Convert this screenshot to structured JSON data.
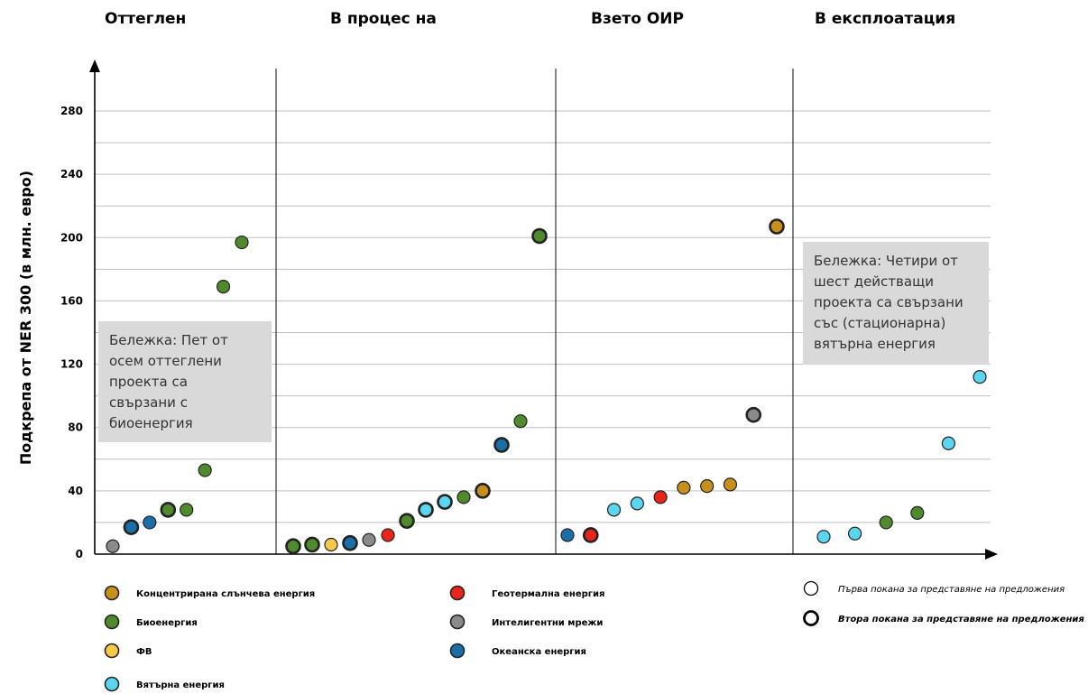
{
  "chart_data": {
    "type": "scatter",
    "ylabel": "Подкрепа от NER 300 (в млн. евро)",
    "ylim": [
      0,
      280
    ],
    "yticks": [
      0,
      40,
      80,
      120,
      160,
      200,
      240,
      280
    ],
    "grid": true,
    "panels": [
      {
        "title": "Оттеглен",
        "note": [
          "Бележка: Пет от",
          "осем оттеглени",
          "проекта са",
          "свързани с",
          "биоенергия"
        ],
        "points": [
          {
            "x": 1,
            "y": 5,
            "category": "grid",
            "call": 1
          },
          {
            "x": 2,
            "y": 17,
            "category": "ocean",
            "call": 2
          },
          {
            "x": 3,
            "y": 20,
            "category": "ocean",
            "call": 1
          },
          {
            "x": 4,
            "y": 28,
            "category": "bio",
            "call": 2
          },
          {
            "x": 5,
            "y": 28,
            "category": "bio",
            "call": 1
          },
          {
            "x": 6,
            "y": 53,
            "category": "bio",
            "call": 1
          },
          {
            "x": 7,
            "y": 169,
            "category": "bio",
            "call": 1
          },
          {
            "x": 8,
            "y": 197,
            "category": "bio",
            "call": 1
          }
        ]
      },
      {
        "title": "В процес на",
        "note": [],
        "points": [
          {
            "x": 1,
            "y": 5,
            "category": "bio",
            "call": 2
          },
          {
            "x": 2,
            "y": 6,
            "category": "bio",
            "call": 2
          },
          {
            "x": 3,
            "y": 6,
            "category": "pv",
            "call": 1
          },
          {
            "x": 4,
            "y": 7,
            "category": "ocean",
            "call": 2
          },
          {
            "x": 5,
            "y": 9,
            "category": "grid",
            "call": 1
          },
          {
            "x": 6,
            "y": 12,
            "category": "geo",
            "call": 1
          },
          {
            "x": 7,
            "y": 21,
            "category": "bio",
            "call": 2
          },
          {
            "x": 8,
            "y": 28,
            "category": "wind",
            "call": 2
          },
          {
            "x": 9,
            "y": 33,
            "category": "wind",
            "call": 2
          },
          {
            "x": 10,
            "y": 36,
            "category": "bio",
            "call": 1
          },
          {
            "x": 11,
            "y": 40,
            "category": "csp",
            "call": 2
          },
          {
            "x": 12,
            "y": 69,
            "category": "ocean",
            "call": 2
          },
          {
            "x": 13,
            "y": 84,
            "category": "bio",
            "call": 1
          },
          {
            "x": 14,
            "y": 201,
            "category": "bio",
            "call": 2
          }
        ]
      },
      {
        "title": "Взето ОИР",
        "note": [],
        "points": [
          {
            "x": 1,
            "y": 12,
            "category": "ocean",
            "call": 1
          },
          {
            "x": 2,
            "y": 12,
            "category": "geo",
            "call": 2
          },
          {
            "x": 3,
            "y": 28,
            "category": "wind",
            "call": 1
          },
          {
            "x": 4,
            "y": 32,
            "category": "wind",
            "call": 1
          },
          {
            "x": 5,
            "y": 36,
            "category": "geo",
            "call": 1
          },
          {
            "x": 6,
            "y": 42,
            "category": "csp",
            "call": 1
          },
          {
            "x": 7,
            "y": 43,
            "category": "csp",
            "call": 1
          },
          {
            "x": 8,
            "y": 44,
            "category": "csp",
            "call": 1
          },
          {
            "x": 9,
            "y": 88,
            "category": "grid",
            "call": 2
          },
          {
            "x": 10,
            "y": 207,
            "category": "csp",
            "call": 2
          }
        ]
      },
      {
        "title": "В експлоатация",
        "note": [
          "Бележка: Четири от",
          "шест действащи",
          "проекта са свързани",
          "със (стационарна)",
          "вятърна енергия"
        ],
        "points": [
          {
            "x": 1,
            "y": 11,
            "category": "wind",
            "call": 1
          },
          {
            "x": 2,
            "y": 13,
            "category": "wind",
            "call": 1
          },
          {
            "x": 3,
            "y": 20,
            "category": "bio",
            "call": 1
          },
          {
            "x": 4,
            "y": 26,
            "category": "bio",
            "call": 1
          },
          {
            "x": 5,
            "y": 70,
            "category": "wind",
            "call": 1
          },
          {
            "x": 6,
            "y": 112,
            "category": "wind",
            "call": 1
          }
        ]
      }
    ],
    "categories": [
      {
        "key": "csp",
        "label": "Концентрирана слънчева енергия",
        "color": "#c8901a"
      },
      {
        "key": "bio",
        "label": "Биоенергия",
        "color": "#4f8a2c"
      },
      {
        "key": "pv",
        "label": "ФВ",
        "color": "#f7c948"
      },
      {
        "key": "wind",
        "label": "Вятърна енергия",
        "color": "#5cd6f0"
      },
      {
        "key": "geo",
        "label": "Геотермална енергия",
        "color": "#e8251b"
      },
      {
        "key": "grid",
        "label": "Интелигентни мрежи",
        "color": "#8a8a8a"
      },
      {
        "key": "ocean",
        "label": "Океанска енергия",
        "color": "#1b6fa8"
      }
    ],
    "calls": [
      {
        "call": 1,
        "label": "Първа покана за представяне на предложения"
      },
      {
        "call": 2,
        "label": "Втора покана за представяне на предложения"
      }
    ]
  }
}
